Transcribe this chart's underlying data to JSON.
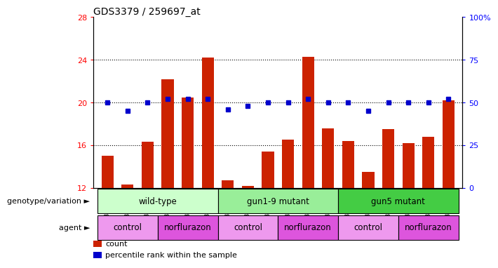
{
  "title": "GDS3379 / 259697_at",
  "samples": [
    "GSM323075",
    "GSM323076",
    "GSM323077",
    "GSM323078",
    "GSM323079",
    "GSM323080",
    "GSM323081",
    "GSM323082",
    "GSM323083",
    "GSM323084",
    "GSM323085",
    "GSM323086",
    "GSM323087",
    "GSM323088",
    "GSM323089",
    "GSM323090",
    "GSM323091",
    "GSM323092"
  ],
  "counts": [
    15.0,
    12.3,
    16.3,
    22.2,
    20.5,
    24.2,
    12.7,
    12.2,
    15.4,
    16.5,
    24.3,
    17.6,
    16.4,
    13.5,
    17.5,
    16.2,
    16.8,
    20.2
  ],
  "percentiles": [
    50,
    45,
    50,
    52,
    52,
    52,
    46,
    48,
    50,
    50,
    52,
    50,
    50,
    45,
    50,
    50,
    50,
    52
  ],
  "ylim_left": [
    12,
    28
  ],
  "ylim_right": [
    0,
    100
  ],
  "yticks_left": [
    12,
    16,
    20,
    24,
    28
  ],
  "yticks_right": [
    0,
    25,
    50,
    75,
    100
  ],
  "bar_color": "#cc2200",
  "dot_color": "#0000cc",
  "genotype_groups": [
    {
      "label": "wild-type",
      "start": 0,
      "end": 6,
      "color": "#ccffcc"
    },
    {
      "label": "gun1-9 mutant",
      "start": 6,
      "end": 12,
      "color": "#99ee99"
    },
    {
      "label": "gun5 mutant",
      "start": 12,
      "end": 18,
      "color": "#44cc44"
    }
  ],
  "agent_groups": [
    {
      "label": "control",
      "start": 0,
      "end": 3,
      "color": "#ee99ee"
    },
    {
      "label": "norflurazon",
      "start": 3,
      "end": 6,
      "color": "#dd55dd"
    },
    {
      "label": "control",
      "start": 6,
      "end": 9,
      "color": "#ee99ee"
    },
    {
      "label": "norflurazon",
      "start": 9,
      "end": 12,
      "color": "#dd55dd"
    },
    {
      "label": "control",
      "start": 12,
      "end": 15,
      "color": "#ee99ee"
    },
    {
      "label": "norflurazon",
      "start": 15,
      "end": 18,
      "color": "#dd55dd"
    }
  ],
  "genotype_label": "genotype/variation",
  "agent_label": "agent",
  "legend_items": [
    {
      "color": "#cc2200",
      "label": "count"
    },
    {
      "color": "#0000cc",
      "label": "percentile rank within the sample"
    }
  ],
  "background_color": "#ffffff"
}
